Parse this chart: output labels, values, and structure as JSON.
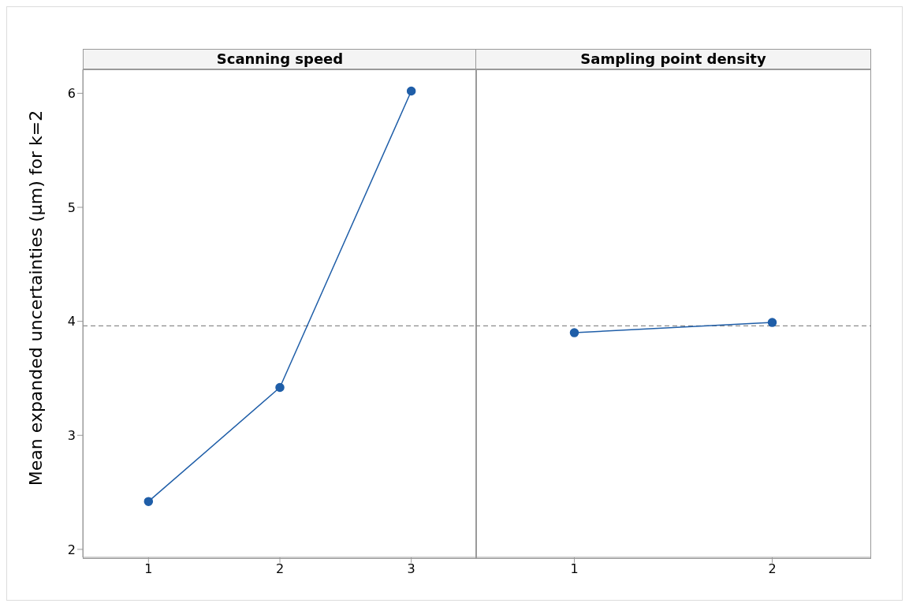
{
  "chart_data": [
    {
      "type": "line",
      "title": "Scanning speed",
      "ylabel": "Mean expanded uncertainties (µm) for k=2",
      "categories": [
        "1",
        "2",
        "3"
      ],
      "series": [
        {
          "color": "#1f5ea8",
          "values": [
            2.42,
            3.42,
            6.02
          ]
        }
      ],
      "ylim": [
        1.93,
        6.21
      ],
      "yticks": [
        2,
        3,
        4,
        5,
        6
      ],
      "ref_lines": [
        {
          "axis": "y",
          "value": 3.96,
          "line_style": "dashed",
          "color": "#8c8c8c"
        }
      ],
      "marker": "circle"
    },
    {
      "type": "line",
      "title": "Sampling point density",
      "categories": [
        "1",
        "2"
      ],
      "series": [
        {
          "color": "#1f5ea8",
          "values": [
            3.9,
            3.99
          ]
        }
      ],
      "ylim": [
        1.93,
        6.21
      ],
      "yticks": [
        2,
        3,
        4,
        5,
        6
      ],
      "tick_labels": "x",
      "ref_lines": [
        {
          "axis": "y",
          "value": 3.96,
          "line_style": "dashed",
          "color": "#8c8c8c"
        }
      ],
      "marker": "circle"
    }
  ]
}
